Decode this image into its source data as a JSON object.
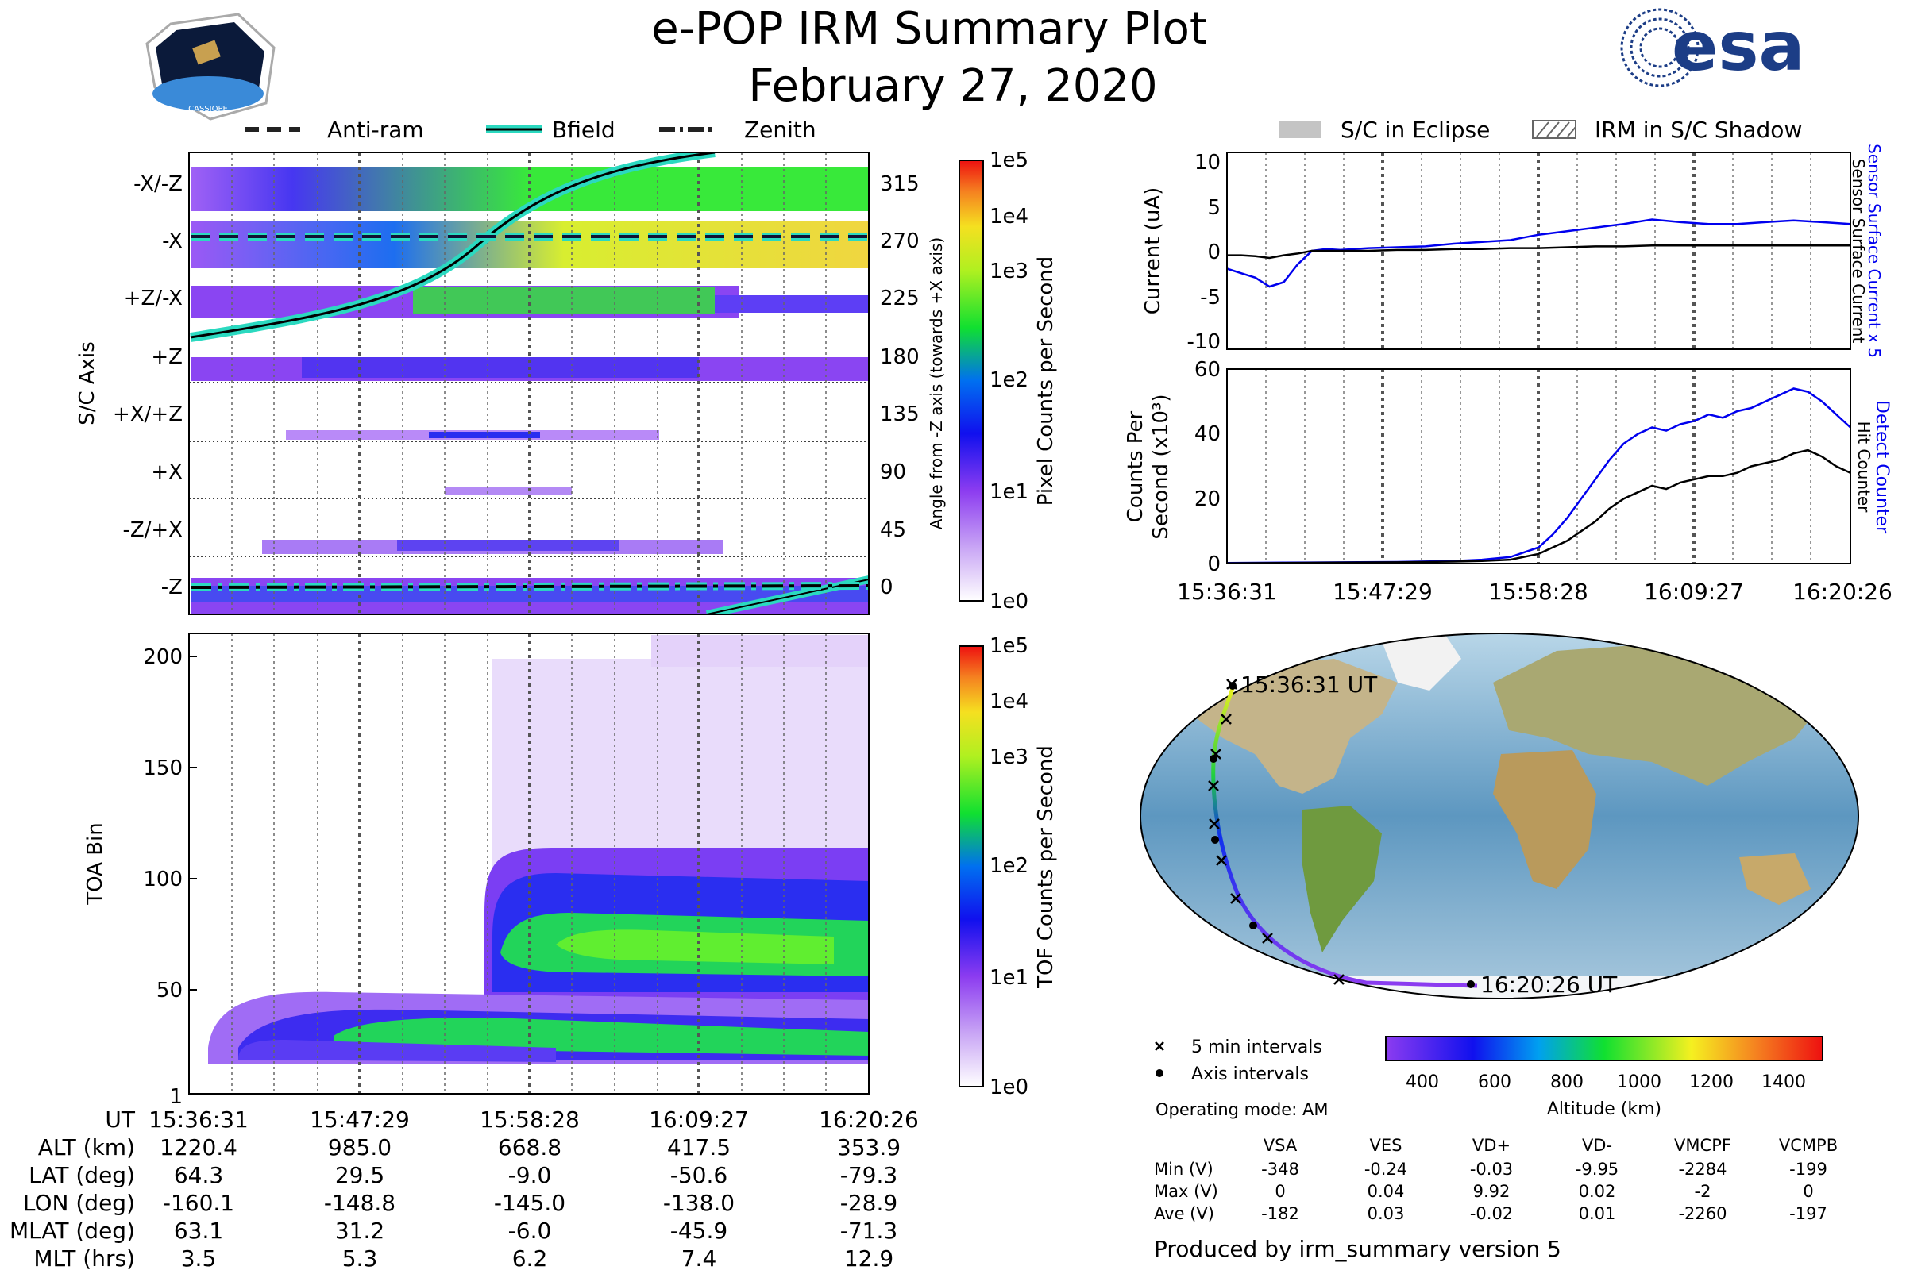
{
  "header": {
    "title": "e-POP IRM Summary Plot",
    "date": "February 27, 2020",
    "mission_badge_text": "CASSIOPE",
    "esa_logo_text": "esa"
  },
  "legend_top_left": [
    {
      "label": "Anti-ram",
      "style": "dashed"
    },
    {
      "label": "Bfield",
      "style": "solid"
    },
    {
      "label": "Zenith",
      "style": "dashdot"
    }
  ],
  "legend_top_right": [
    {
      "label": "S/C in Eclipse",
      "style": "gray-fill"
    },
    {
      "label": "IRM in S/C Shadow",
      "style": "hatch"
    }
  ],
  "time_ticks": [
    "15:36:31",
    "15:47:29",
    "15:58:28",
    "16:09:27",
    "16:20:26"
  ],
  "colors": {
    "accent_cyan": "#2bd9c0",
    "blue": "#0000ee",
    "purple_low": "#9b59f5",
    "green_high": "#2ee830",
    "yellow_peak": "#f0e020"
  },
  "chart_data": [
    {
      "name": "sc-axis-pixel-counts",
      "type": "heatmap",
      "ylabel_left": "S/C Axis",
      "ylabel_right": "Angle from -Z axis (towards +X axis)",
      "axis_labels": [
        "-X/-Z",
        "-X",
        "+Z/-X",
        "+Z",
        "+X/+Z",
        "+X",
        "-Z/+X",
        "-Z"
      ],
      "angle_ticks": [
        "315",
        "270",
        "225",
        "180",
        "135",
        "90",
        "45",
        "0"
      ],
      "colorbar": {
        "label": "Pixel Counts per Second",
        "ticks": [
          "1e5",
          "1e4",
          "1e3",
          "1e2",
          "1e1",
          "1e0"
        ]
      }
    },
    {
      "name": "toa-bin-tof-counts",
      "type": "heatmap",
      "ylabel": "TOA Bin",
      "y_ticks": [
        "200",
        "150",
        "100",
        "50",
        "1"
      ],
      "ylim": [
        1,
        210
      ],
      "colorbar": {
        "label": "TOF Counts per Second",
        "ticks": [
          "1e5",
          "1e4",
          "1e3",
          "1e2",
          "1e1",
          "1e0"
        ]
      }
    },
    {
      "name": "current-uA",
      "type": "line",
      "ylabel": "Current (uA)",
      "y_ticks": [
        "10",
        "5",
        "0",
        "-5",
        "-10"
      ],
      "ylim": [
        -11,
        11
      ],
      "x": [
        0,
        1,
        2,
        3,
        4,
        5,
        6,
        7,
        8,
        9,
        10,
        12,
        14,
        16,
        18,
        20,
        22,
        24,
        26,
        28,
        30,
        32,
        34,
        36,
        38,
        40,
        42,
        44
      ],
      "series": [
        {
          "name": "Sensor Surface Current x 5",
          "color": "#0000ee",
          "values": [
            -2,
            -2.5,
            -3,
            -4,
            -3.5,
            -1.5,
            0,
            0.2,
            0.1,
            0.2,
            0.3,
            0.4,
            0.5,
            0.8,
            1,
            1.2,
            1.8,
            2.2,
            2.6,
            3,
            3.5,
            3.2,
            3,
            3,
            3.2,
            3.4,
            3.2,
            3
          ]
        },
        {
          "name": "Sensor Surface Current",
          "color": "#000000",
          "values": [
            -0.5,
            -0.5,
            -0.6,
            -0.8,
            -0.5,
            -0.3,
            0,
            0,
            0,
            0,
            0,
            0.1,
            0.1,
            0.2,
            0.2,
            0.3,
            0.3,
            0.4,
            0.5,
            0.5,
            0.6,
            0.6,
            0.6,
            0.6,
            0.6,
            0.6,
            0.6,
            0.6
          ]
        }
      ]
    },
    {
      "name": "counts-per-second",
      "type": "line",
      "ylabel_line1": "Counts Per",
      "ylabel_line2": "Second (x10³)",
      "y_ticks": [
        "60",
        "40",
        "20",
        "0"
      ],
      "ylim": [
        0,
        60
      ],
      "x": [
        0,
        4,
        8,
        12,
        16,
        18,
        20,
        22,
        23,
        24,
        25,
        26,
        27,
        28,
        29,
        30,
        31,
        32,
        33,
        34,
        35,
        36,
        37,
        38,
        39,
        40,
        41,
        42,
        43,
        44
      ],
      "series": [
        {
          "name": "Detect Counter",
          "color": "#0000ee",
          "values": [
            0.2,
            0.3,
            0.4,
            0.5,
            0.8,
            1.2,
            2,
            5,
            9,
            14,
            20,
            26,
            32,
            37,
            40,
            42,
            41,
            43,
            44,
            46,
            45,
            47,
            48,
            50,
            52,
            54,
            53,
            50,
            46,
            42
          ]
        },
        {
          "name": "Hit Counter",
          "color": "#000000",
          "values": [
            0.1,
            0.2,
            0.3,
            0.4,
            0.6,
            0.8,
            1.2,
            3,
            5,
            7,
            10,
            13,
            17,
            20,
            22,
            24,
            23,
            25,
            26,
            27,
            27,
            28,
            30,
            31,
            32,
            34,
            35,
            33,
            30,
            28
          ]
        }
      ]
    },
    {
      "name": "orbit-map",
      "type": "scatter",
      "start_label": "15:36:31 UT",
      "end_label": "16:20:26 UT",
      "legend_cross": "5 min intervals",
      "legend_dot": "Axis intervals",
      "colorbar": {
        "label": "Altitude (km)",
        "ticks": [
          "400",
          "600",
          "800",
          "1000",
          "1200",
          "1400"
        ],
        "range": [
          290,
          1500
        ]
      }
    }
  ],
  "ephemeris": {
    "rows": [
      {
        "label": "UT",
        "values": [
          "15:36:31",
          "15:47:29",
          "15:58:28",
          "16:09:27",
          "16:20:26"
        ]
      },
      {
        "label": "ALT (km)",
        "values": [
          "1220.4",
          "985.0",
          "668.8",
          "417.5",
          "353.9"
        ]
      },
      {
        "label": "LAT (deg)",
        "values": [
          "64.3",
          "29.5",
          "-9.0",
          "-50.6",
          "-79.3"
        ]
      },
      {
        "label": "LON (deg)",
        "values": [
          "-160.1",
          "-148.8",
          "-145.0",
          "-138.0",
          "-28.9"
        ]
      },
      {
        "label": "MLAT (deg)",
        "values": [
          "63.1",
          "31.2",
          "-6.0",
          "-45.9",
          "-71.3"
        ]
      },
      {
        "label": "MLT (hrs)",
        "values": [
          "3.5",
          "5.3",
          "6.2",
          "7.4",
          "12.9"
        ]
      }
    ]
  },
  "voltages": {
    "operating_mode": "Operating mode: AM",
    "columns": [
      "VSA",
      "VES",
      "VD+",
      "VD-",
      "VMCPF",
      "VCMPB"
    ],
    "rows": [
      {
        "label": "Min (V)",
        "values": [
          "-348",
          "-0.24",
          "-0.03",
          "-9.95",
          "-2284",
          "-199"
        ]
      },
      {
        "label": "Max (V)",
        "values": [
          "0",
          "0.04",
          "9.92",
          "0.02",
          "-2",
          "0"
        ]
      },
      {
        "label": "Ave (V)",
        "values": [
          "-182",
          "0.03",
          "-0.02",
          "0.01",
          "-2260",
          "-197"
        ]
      }
    ]
  },
  "footer": {
    "produced_by": "Produced by irm_summary version 5"
  }
}
